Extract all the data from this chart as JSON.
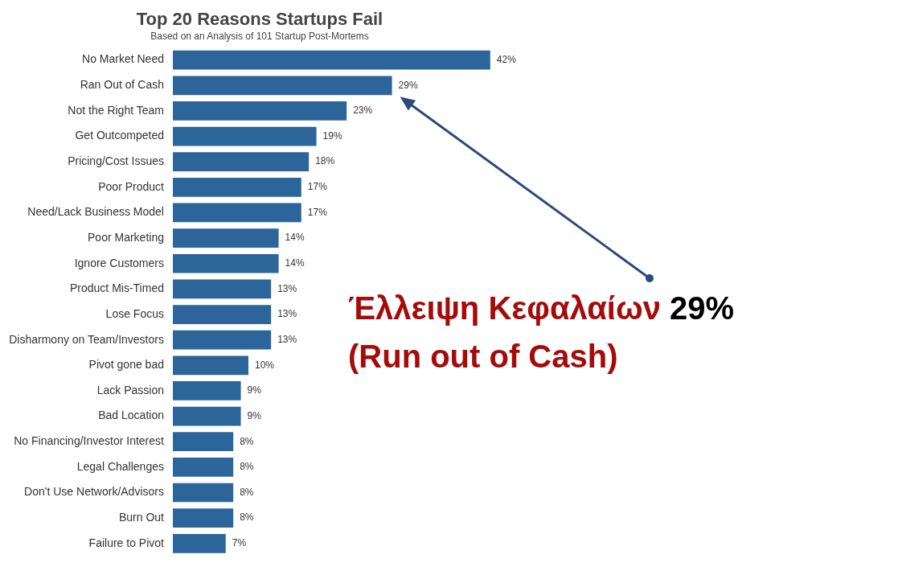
{
  "chart_data": {
    "type": "bar",
    "orientation": "horizontal",
    "title": "Top 20 Reasons Startups Fail",
    "subtitle": "Based on an Analysis of 101 Startup Post-Mortems",
    "categories": [
      "No Market Need",
      "Ran Out of Cash",
      "Not the Right Team",
      "Get Outcompeted",
      "Pricing/Cost Issues",
      "Poor Product",
      "Need/Lack Business Model",
      "Poor Marketing",
      "Ignore Customers",
      "Product Mis-Timed",
      "Lose Focus",
      "Disharmony on Team/Investors",
      "Pivot gone bad",
      "Lack Passion",
      "Bad Location",
      "No Financing/Investor Interest",
      "Legal Challenges",
      "Don't Use Network/Advisors",
      "Burn Out",
      "Failure to Pivot"
    ],
    "values": [
      42,
      29,
      23,
      19,
      18,
      17,
      17,
      14,
      14,
      13,
      13,
      13,
      10,
      9,
      9,
      8,
      8,
      8,
      8,
      7
    ],
    "value_labels": [
      "42%",
      "29%",
      "23%",
      "19%",
      "18%",
      "17%",
      "17%",
      "14%",
      "14%",
      "13%",
      "13%",
      "13%",
      "10%",
      "9%",
      "9%",
      "8%",
      "8%",
      "8%",
      "8%",
      "7%"
    ],
    "color": "#2b6599",
    "annotations": [
      "Έλλειψη Κεφαλαίων 29%",
      "(Run out of Cash)"
    ]
  }
}
